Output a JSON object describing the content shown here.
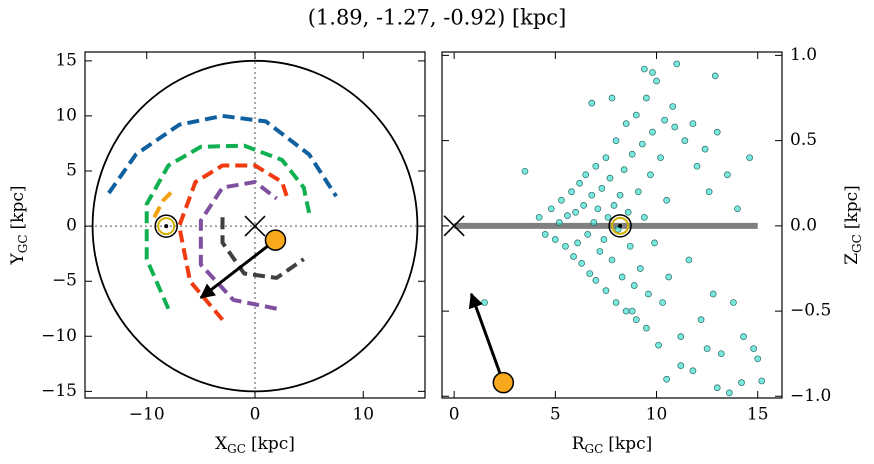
{
  "title": "(1.89, -1.27, -0.92) [kpc]",
  "chart_data": [
    {
      "type": "line",
      "xlabel": {
        "main": "X",
        "sub": "GC",
        "unit": "[kpc]"
      },
      "ylabel": {
        "main": "Y",
        "sub": "GC",
        "unit": "[kpc]"
      },
      "xlim": [
        -15.7,
        15.7
      ],
      "ylim": [
        -15.6,
        15.8
      ],
      "xticks": [
        {
          "value": -10,
          "label": "−10"
        },
        0,
        10
      ],
      "yticks": [
        {
          "value": -15,
          "label": "−15"
        },
        {
          "value": -10,
          "label": "−10"
        },
        {
          "value": -5,
          "label": "−5"
        },
        0,
        5,
        10,
        15
      ],
      "boundary_radius": 15,
      "crosshair": true,
      "series": [
        {
          "color": "#1060a0",
          "x": [
            -13.5,
            -11,
            -7,
            -3,
            1,
            5,
            7.5
          ],
          "y": [
            3,
            6.5,
            9.2,
            10,
            9.5,
            6.5,
            2.7
          ]
        },
        {
          "color": "#10b050",
          "x": [
            -8,
            -10,
            -10,
            -8,
            -5,
            -1,
            2.5,
            4.5,
            5
          ],
          "y": [
            -7.5,
            -3,
            2,
            5.5,
            7.2,
            7.3,
            6,
            3.5,
            1.2
          ]
        },
        {
          "color": "#f5a010",
          "x": [
            -9.3,
            -8.5,
            -7.5
          ],
          "y": [
            0.8,
            2.3,
            3.3
          ]
        },
        {
          "color": "#f03a10",
          "x": [
            -3,
            -6,
            -7,
            -5.5,
            -3,
            0,
            2.5,
            3
          ],
          "y": [
            -8.5,
            -5,
            0,
            4,
            5.5,
            5.5,
            4,
            2.5
          ]
        },
        {
          "color": "#8050a0",
          "x": [
            2,
            -2,
            -5,
            -5,
            -3,
            0,
            2
          ],
          "y": [
            -7.5,
            -6.7,
            -3.5,
            0.5,
            3.5,
            4,
            2.5
          ]
        },
        {
          "color": "#404040",
          "x": [
            -3,
            -3,
            -1,
            2,
            4.5
          ],
          "y": [
            0.8,
            -1.5,
            -4.3,
            -4.7,
            -3
          ]
        }
      ],
      "center": {
        "x": 0,
        "y": 0
      },
      "sun": {
        "x": -8.2,
        "y": 0
      },
      "object": {
        "x": 1.89,
        "y": -1.27
      },
      "arrow": {
        "x": -5,
        "y": -6.5
      }
    },
    {
      "type": "scatter",
      "xlabel": {
        "main": "R",
        "sub": "GC",
        "unit": "[kpc]"
      },
      "ylabel": {
        "main": "Z",
        "sub": "GC",
        "unit": "[kpc]"
      },
      "xlim": [
        -0.6,
        16.2
      ],
      "ylim": [
        -1.01,
        1.02
      ],
      "xticks": [
        0,
        5,
        10,
        15
      ],
      "yticks": [
        {
          "value": -1,
          "label": "−1.0"
        },
        {
          "value": -0.5,
          "label": "−0.5"
        },
        {
          "value": 0,
          "label": "0.0"
        },
        {
          "value": 0.5,
          "label": "0.5"
        },
        {
          "value": 1,
          "label": "1.0"
        }
      ],
      "yaxis_side": "right",
      "color": "#40e0d0",
      "x": [
        4.2,
        4.5,
        4.8,
        5.0,
        5.2,
        5.3,
        5.5,
        5.6,
        5.8,
        5.9,
        6.0,
        6.1,
        6.2,
        6.3,
        6.4,
        6.5,
        6.6,
        6.7,
        6.8,
        6.9,
        7.0,
        7.0,
        7.1,
        7.2,
        7.3,
        7.4,
        7.5,
        7.5,
        7.6,
        7.7,
        7.8,
        7.9,
        8.0,
        8.0,
        8.1,
        8.2,
        8.3,
        8.4,
        8.5,
        8.5,
        8.6,
        8.7,
        8.8,
        8.9,
        9.0,
        9.0,
        9.1,
        9.2,
        9.3,
        9.4,
        9.5,
        9.5,
        9.6,
        9.7,
        9.8,
        9.9,
        10.0,
        10.1,
        10.2,
        10.3,
        10.4,
        10.5,
        10.6,
        10.8,
        11.0,
        11.2,
        11.4,
        11.6,
        11.8,
        12.0,
        12.2,
        12.4,
        12.6,
        12.8,
        13.0,
        13.2,
        13.5,
        13.8,
        14.0,
        14.3,
        14.6,
        15.0,
        1.5,
        3.5,
        7.8,
        9.8,
        10.5,
        11.8,
        12.5,
        13.0,
        14.2,
        15.2,
        14.8,
        11.2,
        9.4,
        8.8,
        6.8,
        10.9,
        12.9,
        13.6
      ],
      "y": [
        0.05,
        -0.05,
        0.1,
        -0.08,
        0.02,
        0.15,
        -0.12,
        0.06,
        0.2,
        -0.18,
        0.08,
        -0.1,
        0.25,
        -0.22,
        0.12,
        0.3,
        -0.05,
        -0.28,
        0.18,
        0.02,
        0.35,
        -0.32,
        0.1,
        -0.15,
        0.22,
        -0.08,
        0.4,
        -0.38,
        0.05,
        0.28,
        -0.2,
        0.12,
        0.5,
        -0.45,
        -0.02,
        0.18,
        -0.3,
        0.33,
        0.6,
        -0.5,
        0.08,
        -0.12,
        0.42,
        -0.35,
        0.65,
        -0.55,
        0.2,
        -0.25,
        0.48,
        0.05,
        0.75,
        -0.6,
        -0.4,
        0.3,
        0.55,
        -0.1,
        0.85,
        -0.7,
        0.4,
        -0.45,
        0.62,
        0.15,
        -0.3,
        0.7,
        0.95,
        -0.65,
        0.5,
        -0.2,
        0.6,
        0.35,
        -0.55,
        0.45,
        0.2,
        -0.4,
        0.55,
        -0.75,
        0.3,
        -0.45,
        0.1,
        -0.65,
        0.4,
        -0.78,
        -0.45,
        0.32,
        0.75,
        0.9,
        -0.9,
        -0.85,
        -0.72,
        -0.95,
        -0.92,
        -0.91,
        -0.72,
        -0.82,
        0.92,
        -0.5,
        0.72,
        0.58,
        0.88,
        -0.98
      ],
      "disk": {
        "x": [
          0,
          15
        ],
        "y": [
          0,
          0
        ]
      },
      "center": {
        "x": 0,
        "y": 0
      },
      "sun": {
        "x": 8.2,
        "y": 0
      },
      "object": {
        "x": 2.43,
        "y": -0.92
      },
      "arrow": {
        "x": 0.85,
        "y": -0.4
      }
    }
  ]
}
